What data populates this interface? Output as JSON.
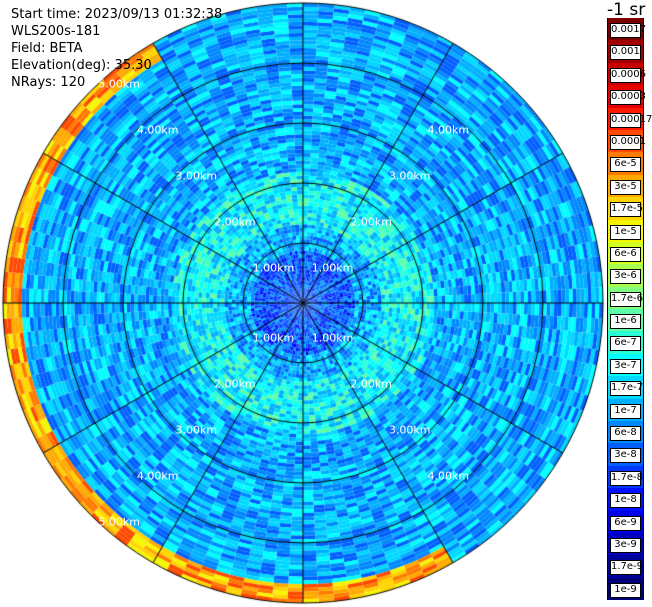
{
  "info": {
    "start_time": "Start time: 2023/09/13 01:32:38",
    "device": "WLS200s-181",
    "field": "Field: BETA",
    "elevation": "Elevation(deg): 35.30",
    "nrays": "NRays: 120"
  },
  "unit_label": "-1 sr",
  "colorbar": {
    "labels": [
      "0.0017",
      "0.001",
      "0.0006",
      "0.0003",
      "0.00017",
      "0.0001",
      "6e-5",
      "3e-5",
      "1.7e-5",
      "1e-5",
      "6e-6",
      "3e-6",
      "1.7e-6",
      "1e-6",
      "6e-7",
      "3e-7",
      "1.7e-7",
      "1e-7",
      "6e-8",
      "3e-8",
      "1.7e-8",
      "1e-8",
      "6e-9",
      "3e-9",
      "1.7e-9",
      "1e-9"
    ],
    "colors": [
      "#7d0000",
      "#a00000",
      "#c80000",
      "#e60000",
      "#ff1a00",
      "#ff4a00",
      "#ff7a00",
      "#ffaa00",
      "#ffd400",
      "#f5f500",
      "#d2ff20",
      "#a8ff50",
      "#80ff80",
      "#5cffa8",
      "#2affd4",
      "#00ffff",
      "#00d8ff",
      "#00b0ff",
      "#0088ff",
      "#0060ff",
      "#0038ff",
      "#0010ff",
      "#0000e6",
      "#0000c0",
      "#00009a",
      "#000078"
    ]
  },
  "range_labels": [
    "1.00km",
    "2.00km",
    "3.00km",
    "4.00km",
    "5.00km"
  ],
  "chart_data": {
    "type": "heatmap",
    "projection": "polar PPI",
    "field": "BETA",
    "unit": "-1 sr",
    "elevation_deg": 35.3,
    "n_rays": 120,
    "range_rings_km": [
      1,
      2,
      3,
      4,
      5
    ],
    "azimuth_spokes_deg": [
      0,
      30,
      60,
      90,
      120,
      150,
      180,
      210,
      240,
      270,
      300,
      330
    ],
    "max_range_km": 5.0,
    "color_scale": "log",
    "value_range": [
      1e-09,
      0.0017
    ],
    "features": [
      {
        "description": "low values near center",
        "range_km": [
          0,
          0.9
        ],
        "level": 3e-08
      },
      {
        "description": "background",
        "range_km": [
          1,
          4.5
        ],
        "level": 1e-07
      },
      {
        "description": "enhanced band",
        "range_km": [
          1.3,
          2.2
        ],
        "level": 3e-07
      },
      {
        "description": "high backscatter band at far range, azimuth 150-330",
        "range_km": [
          4.7,
          5.0
        ],
        "level": 3e-05
      }
    ]
  }
}
